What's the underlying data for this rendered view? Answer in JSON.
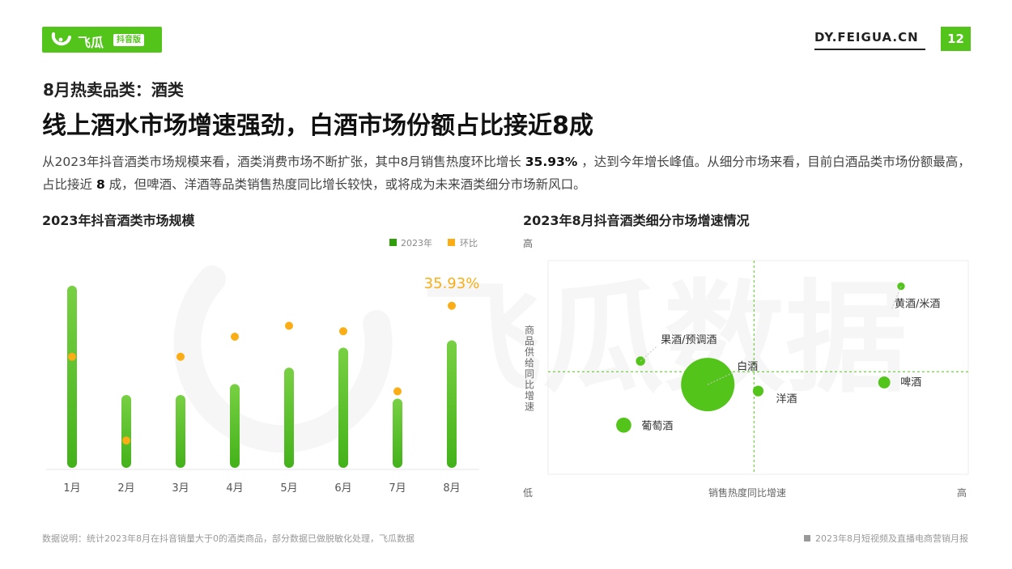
{
  "header": {
    "brand_name": "飞瓜",
    "brand_sub": "抖音版",
    "site": "DY.FEIGUA.CN",
    "page_number": "12"
  },
  "section_label": "8月热卖品类：酒类",
  "headline": "线上酒水市场增速强劲，白酒市场份额占比接近8成",
  "description": {
    "part1": "从2023年抖音酒类市场规模来看，酒类消费市场不断扩张，其中8月销售热度环比增长 ",
    "highlight1": "35.93%",
    "part2": " ，达到今年增长峰值。从细分市场来看，目前白酒品类市场份额最高，占比接近 ",
    "highlight2": "8",
    "part3": " 成，但啤酒、洋酒等品类销售热度同比增长较快，或将成为未来酒类细分市场新风口。"
  },
  "watermark": "飞瓜数据",
  "colors": {
    "accent": "#52c41a",
    "bar": "#5ec52b",
    "ratio": "#faad14",
    "grid_line": "#52c41a"
  },
  "chart_data": [
    {
      "type": "bar",
      "title": "2023年抖音酒类市场规模",
      "categories": [
        "1月",
        "2月",
        "3月",
        "4月",
        "5月",
        "6月",
        "7月",
        "8月"
      ],
      "series": [
        {
          "name": "2023年",
          "type": "bar",
          "values": [
            100,
            40,
            40,
            46,
            55,
            66,
            38,
            70
          ]
        },
        {
          "name": "环比",
          "type": "scatter",
          "values": [
            61,
            15,
            61,
            72,
            78,
            75,
            42,
            89
          ]
        }
      ],
      "data_labels": [
        {
          "series": "环比",
          "category": "8月",
          "text": "35.93%"
        }
      ],
      "ylim": [
        0,
        100
      ],
      "legend_position": "top-right"
    },
    {
      "type": "scatter",
      "title": "2023年8月抖音酒类细分市场增速情况",
      "xlabel": "销售热度同比增速",
      "ylabel": "商品供给同比增速",
      "x_low_label": "低",
      "x_high_label": "高",
      "y_high_label": "高",
      "xlim": [
        0,
        100
      ],
      "ylim": [
        0,
        100
      ],
      "divider": {
        "x": 49,
        "y": 48
      },
      "points": [
        {
          "name": "黄酒/米酒",
          "x": 84,
          "y": 88,
          "size": 2
        },
        {
          "name": "果酒/预调酒",
          "x": 22,
          "y": 53,
          "size": 3
        },
        {
          "name": "白酒",
          "x": 38,
          "y": 42,
          "size": 100
        },
        {
          "name": "啤酒",
          "x": 80,
          "y": 43,
          "size": 5
        },
        {
          "name": "洋酒",
          "x": 50,
          "y": 39,
          "size": 4
        },
        {
          "name": "葡萄酒",
          "x": 18,
          "y": 23,
          "size": 8
        }
      ]
    }
  ],
  "footer": {
    "note": "数据说明：统计2023年8月在抖音销量大于0的酒类商品，部分数据已做脱敏化处理，飞瓜数据",
    "report": "2023年8月短视频及直播电商营销月报"
  }
}
